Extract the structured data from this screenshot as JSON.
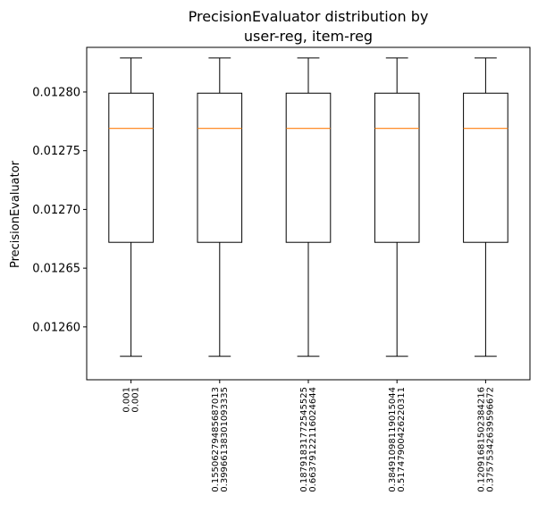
{
  "chart_data": {
    "type": "boxplot",
    "title_lines": [
      "PrecisionEvaluator distribution by",
      "user-reg, item-reg"
    ],
    "xlabel": "",
    "ylabel": "PrecisionEvaluator",
    "ylim": [
      0.012555,
      0.012838
    ],
    "yticks": [
      0.0126,
      0.01265,
      0.0127,
      0.01275,
      0.0128
    ],
    "ytick_labels": [
      "0.01260",
      "0.01265",
      "0.01270",
      "0.01275",
      "0.01280"
    ],
    "grid": false,
    "legend": "none",
    "median_color": "#ff7f0e",
    "box_color": "#000000",
    "categories": [
      {
        "line1": "0.001",
        "line2": "0.001",
        "whisker_low": 0.012575,
        "q1": 0.012672,
        "median": 0.012769,
        "q3": 0.012799,
        "whisker_high": 0.012829
      },
      {
        "line1": "0.15506279485687013",
        "line2": "0.39966138301093335",
        "whisker_low": 0.012575,
        "q1": 0.012672,
        "median": 0.012769,
        "q3": 0.012799,
        "whisker_high": 0.012829
      },
      {
        "line1": "0.18791831772545525",
        "line2": "0.66379122116024644",
        "whisker_low": 0.012575,
        "q1": 0.012672,
        "median": 0.012769,
        "q3": 0.012799,
        "whisker_high": 0.012829
      },
      {
        "line1": "0.38491098119015044",
        "line2": "0.51747900426220311",
        "whisker_low": 0.012575,
        "q1": 0.012672,
        "median": 0.012769,
        "q3": 0.012799,
        "whisker_high": 0.012829
      },
      {
        "line1": "0.12091681502384216",
        "line2": "0.37575342639596672",
        "whisker_low": 0.012575,
        "q1": 0.012672,
        "median": 0.012769,
        "q3": 0.012799,
        "whisker_high": 0.012829
      }
    ]
  }
}
